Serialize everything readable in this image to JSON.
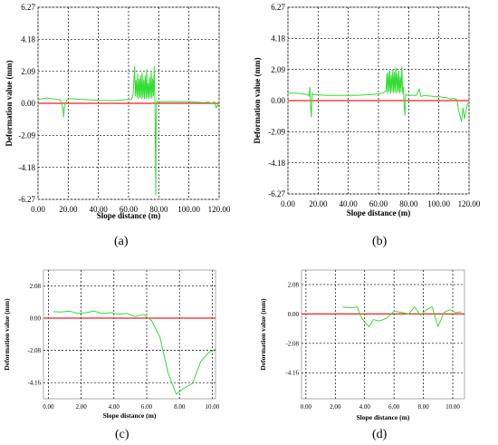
{
  "colors": {
    "series": "#33dd33",
    "zero_line": "#ee2222",
    "grid": "#000000",
    "frame": "#9a9a9a"
  },
  "chart_data": [
    {
      "panel": "(a)",
      "type": "line",
      "xlabel": "Slope distance (m)",
      "ylabel": "Deformation value (mm)",
      "xlim": [
        0,
        120
      ],
      "ylim": [
        -6.27,
        6.27
      ],
      "x_ticks": [
        "0.00",
        "20.00",
        "40.00",
        "60.00",
        "80.00",
        "100.00",
        "120.00"
      ],
      "x_tick_values": [
        0,
        20,
        40,
        60,
        80,
        100,
        120
      ],
      "y_ticks": [
        "6.27",
        "4.18",
        "2.09",
        "0.00",
        "-2.09",
        "-4.18",
        "-6.27"
      ],
      "y_tick_values": [
        6.27,
        4.18,
        2.09,
        0,
        -2.09,
        -4.18,
        -6.27
      ],
      "grid": true,
      "reference_line": 0,
      "series": [
        {
          "x": [
            0,
            3,
            6,
            9,
            12,
            15,
            16.5,
            17,
            17.5,
            19,
            21,
            30,
            40,
            50,
            60,
            62,
            63,
            64,
            64.5,
            65,
            65.5,
            66,
            66.5,
            67,
            67.5,
            68,
            68.5,
            69,
            69.5,
            70,
            70.5,
            71,
            71.5,
            72,
            72.5,
            73,
            73.5,
            74,
            74.5,
            75,
            75.5,
            76,
            76.5,
            77,
            77.5,
            78,
            78.3,
            78.7,
            80,
            90,
            100,
            110,
            113,
            115,
            117,
            118,
            119,
            120
          ],
          "y": [
            0.25,
            0.3,
            0.35,
            0.3,
            0.28,
            0.2,
            -0.3,
            -0.9,
            -0.2,
            0.2,
            0.3,
            0.25,
            0.2,
            0.18,
            0.25,
            0.25,
            0.6,
            2.4,
            0.5,
            1.5,
            0.4,
            1.9,
            0.3,
            1.6,
            0.4,
            1.8,
            0.3,
            2.0,
            0.4,
            1.5,
            0.3,
            1.8,
            0.3,
            2.2,
            0.4,
            1.3,
            0.3,
            1.7,
            0.4,
            2.1,
            0.3,
            1.6,
            0.5,
            2.4,
            -0.2,
            -6.0,
            -1.0,
            0.1,
            0.1,
            0.12,
            0.1,
            0.05,
            0.08,
            0.0,
            0.1,
            -0.3,
            -0.1,
            -0.25
          ]
        }
      ]
    },
    {
      "panel": "(b)",
      "type": "line",
      "xlabel": "Slope distance (m)",
      "ylabel": "Deformation value (mm)",
      "xlim": [
        0,
        120
      ],
      "ylim": [
        -6.27,
        6.27
      ],
      "x_ticks": [
        "0.00",
        "20.00",
        "40.00",
        "60.00",
        "80.00",
        "100.00",
        "120.00"
      ],
      "x_tick_values": [
        0,
        20,
        40,
        60,
        80,
        100,
        120
      ],
      "y_ticks": [
        "6.27",
        "4.18",
        "2.09",
        "0.00",
        "-2.09",
        "-4.18",
        "-6.27"
      ],
      "y_tick_values": [
        6.27,
        4.18,
        2.09,
        0,
        -2.09,
        -4.18,
        -6.27
      ],
      "grid": true,
      "reference_line": 0,
      "series": [
        {
          "x": [
            0,
            5,
            10,
            13,
            14,
            14.5,
            15,
            15.5,
            16,
            16.5,
            18,
            25,
            35,
            45,
            55,
            60,
            62,
            63,
            64,
            65,
            65.5,
            66,
            66.5,
            67,
            67.5,
            68,
            68.5,
            69,
            69.5,
            70,
            70.5,
            71,
            71.5,
            72,
            72.5,
            73,
            73.5,
            74,
            74.5,
            75,
            75.5,
            76,
            76.5,
            77,
            77.5,
            78,
            80,
            85,
            87,
            88,
            89,
            90,
            100,
            105,
            108,
            110,
            112,
            113,
            114,
            115,
            116,
            117,
            118,
            119,
            120
          ],
          "y": [
            0.5,
            0.5,
            0.45,
            0.4,
            0.3,
            0.9,
            -0.4,
            -1.1,
            0.5,
            0.4,
            0.4,
            0.35,
            0.35,
            0.35,
            0.4,
            0.45,
            0.5,
            0.5,
            0.6,
            0.6,
            1.8,
            0.5,
            1.9,
            0.6,
            2.0,
            0.5,
            1.7,
            0.6,
            2.1,
            0.5,
            1.9,
            0.6,
            2.2,
            0.5,
            1.8,
            0.6,
            2.0,
            0.5,
            1.6,
            0.6,
            2.3,
            0.5,
            0.9,
            -0.3,
            -1.0,
            0.4,
            0.35,
            0.35,
            0.8,
            0.3,
            0.3,
            0.35,
            0.25,
            0.2,
            0.1,
            0.15,
            0.05,
            -0.6,
            -1.0,
            -1.4,
            -0.5,
            -1.2,
            -0.7,
            -0.2,
            -0.2
          ]
        }
      ]
    },
    {
      "panel": "(c)",
      "type": "line",
      "xlabel": "Slope distance (m)",
      "ylabel": "Deformation value (mm)",
      "xlim": [
        -0.3,
        10.2
      ],
      "ylim": [
        -5.2,
        3.1
      ],
      "x_ticks": [
        "0.00",
        "2.00",
        "4.00",
        "6.00",
        "8.00",
        "10.00"
      ],
      "x_tick_values": [
        0,
        2,
        4,
        6,
        8,
        10
      ],
      "y_ticks": [
        "2.08",
        "0.00",
        "-2.08",
        "-4.16"
      ],
      "y_tick_values": [
        2.08,
        0,
        -2.08,
        -4.16
      ],
      "grid": true,
      "reference_line": 0,
      "series": [
        {
          "x": [
            0.3,
            0.8,
            1.3,
            1.8,
            2.3,
            2.8,
            3.3,
            3.8,
            4.3,
            4.8,
            5.3,
            5.8,
            6.3,
            6.8,
            7.3,
            7.8,
            8.3,
            8.8,
            9.3,
            9.8,
            10.2
          ],
          "y": [
            0.42,
            0.4,
            0.45,
            0.3,
            0.35,
            0.45,
            0.3,
            0.35,
            0.25,
            0.3,
            0.1,
            0.25,
            -0.15,
            -1.2,
            -3.5,
            -4.9,
            -4.5,
            -4.2,
            -2.8,
            -2.2,
            -2.0
          ]
        }
      ]
    },
    {
      "panel": "(d)",
      "type": "line",
      "xlabel": "Slope distance (m)",
      "ylabel": "Deformation value (mm)",
      "xlim": [
        -0.3,
        10.8
      ],
      "ylim": [
        -6.0,
        3.1
      ],
      "x_ticks": [
        "0.00",
        "2.00",
        "4.00",
        "6.00",
        "8.00",
        "10.00"
      ],
      "x_tick_values": [
        0,
        2,
        4,
        6,
        8,
        10
      ],
      "y_ticks": [
        "2.08",
        "0.00",
        "-2.08",
        "-4.16"
      ],
      "y_tick_values": [
        2.08,
        0,
        -2.08,
        -4.16
      ],
      "grid": true,
      "reference_line": 0,
      "series": [
        {
          "x": [
            2.5,
            2.8,
            3.2,
            3.5,
            3.7,
            4.0,
            4.3,
            4.6,
            5.0,
            5.5,
            6.0,
            6.5,
            7.0,
            7.4,
            7.8,
            8.2,
            8.6,
            9.0,
            9.4,
            9.8,
            10.2,
            10.6
          ],
          "y": [
            0.5,
            0.45,
            0.45,
            0.5,
            -0.1,
            -0.6,
            -0.9,
            -0.4,
            -0.5,
            -0.3,
            0.2,
            0.1,
            0.0,
            0.5,
            -0.1,
            0.3,
            0.5,
            -0.9,
            0.1,
            0.3,
            0.1,
            0.15
          ]
        }
      ]
    }
  ]
}
